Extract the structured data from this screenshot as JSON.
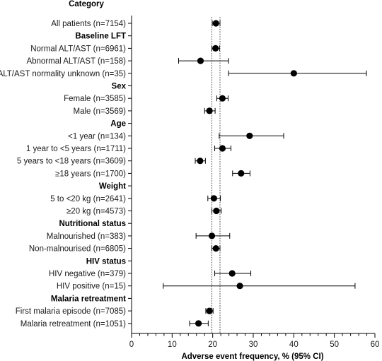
{
  "chart_data": {
    "type": "forest",
    "column_header": "Category",
    "xlabel": "Adverse event frequency, % (95% CI)",
    "xlim": [
      0,
      60
    ],
    "x_ticks": [
      0,
      10,
      20,
      30,
      40,
      50,
      60
    ],
    "reference_lines": [
      19.8,
      21.8
    ],
    "rows": [
      {
        "label": "All patients (n=7154)",
        "header": false,
        "point": 20.8,
        "lo": 19.9,
        "hi": 21.8
      },
      {
        "label": "Baseline LFT",
        "header": true
      },
      {
        "label": "Normal ALT/AST (n=6961)",
        "header": false,
        "point": 20.7,
        "lo": 19.8,
        "hi": 21.7
      },
      {
        "label": "Abnormal ALT/AST (n=158)",
        "header": false,
        "point": 17.0,
        "lo": 11.6,
        "hi": 23.9
      },
      {
        "label": "ALT/AST normality unknown (n=35)",
        "header": false,
        "point": 40.0,
        "lo": 23.9,
        "hi": 57.9
      },
      {
        "label": "Sex",
        "header": true
      },
      {
        "label": "Female (n=3585)",
        "header": false,
        "point": 22.4,
        "lo": 21.0,
        "hi": 23.8
      },
      {
        "label": "Male (n=3569)",
        "header": false,
        "point": 19.2,
        "lo": 18.0,
        "hi": 20.6
      },
      {
        "label": "Age",
        "header": true
      },
      {
        "label": "<1 year (n=134)",
        "header": false,
        "point": 29.1,
        "lo": 21.6,
        "hi": 37.5
      },
      {
        "label": "1 year to <5 years (n=1711)",
        "header": false,
        "point": 22.4,
        "lo": 20.5,
        "hi": 24.5
      },
      {
        "label": "5 years to <18 years (n=3609)",
        "header": false,
        "point": 16.9,
        "lo": 15.7,
        "hi": 18.2
      },
      {
        "label": "≥18 years (n=1700)",
        "header": false,
        "point": 27.0,
        "lo": 24.9,
        "hi": 29.2
      },
      {
        "label": "Weight",
        "header": true
      },
      {
        "label": "5 to <20 kg (n=2641)",
        "header": false,
        "point": 20.3,
        "lo": 18.8,
        "hi": 21.9
      },
      {
        "label": "≥20 kg (n=4573)",
        "header": false,
        "point": 20.9,
        "lo": 19.8,
        "hi": 22.1
      },
      {
        "label": "Nutritional status",
        "header": true
      },
      {
        "label": "Malnourished (n=383)",
        "header": false,
        "point": 19.8,
        "lo": 15.9,
        "hi": 24.2
      },
      {
        "label": "Non-malnourised (n=6805)",
        "header": false,
        "point": 20.8,
        "lo": 19.8,
        "hi": 21.8
      },
      {
        "label": "HIV status",
        "header": true
      },
      {
        "label": "HIV negative (n=379)",
        "header": false,
        "point": 24.8,
        "lo": 20.5,
        "hi": 29.4
      },
      {
        "label": "HIV positive (n=15)",
        "header": false,
        "point": 26.7,
        "lo": 7.8,
        "hi": 55.1
      },
      {
        "label": "Malaria retreatment",
        "header": true
      },
      {
        "label": "First malaria episode (n=7085)",
        "header": false,
        "point": 19.2,
        "lo": 18.3,
        "hi": 20.1
      },
      {
        "label": "Malaria retreatment (n=1051)",
        "header": false,
        "point": 16.5,
        "lo": 14.3,
        "hi": 18.9
      }
    ]
  }
}
